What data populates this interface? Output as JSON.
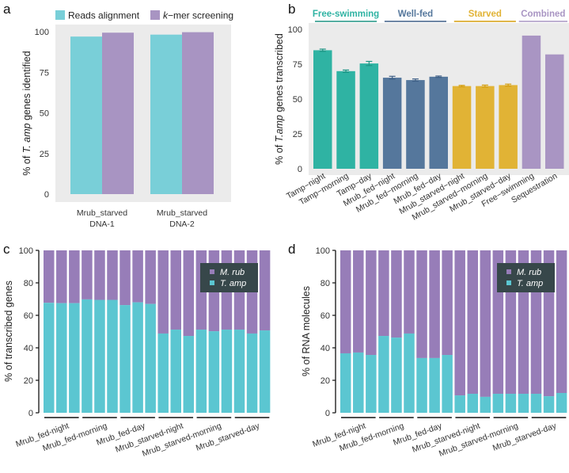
{
  "chart_data": [
    {
      "panel": "a",
      "type": "bar",
      "title": "",
      "xlabel": "",
      "ylabel_parts": [
        "% of ",
        "T. amp",
        " genes identified"
      ],
      "ylabel": "% of T. amp genes identified",
      "categories": [
        [
          "Mrub_starved",
          "DNA-1"
        ],
        [
          "Mrub_starved",
          "DNA-2"
        ]
      ],
      "series": [
        {
          "name": "Reads alignment",
          "color": "#79CFD8",
          "values": [
            97.0,
            98.2
          ]
        },
        {
          "name": "k−mer screening",
          "name_parts": [
            "k",
            "−mer screening"
          ],
          "color": "#A894C2",
          "values": [
            99.4,
            99.7
          ]
        }
      ],
      "ylim": [
        0,
        100
      ],
      "yticks": [
        0,
        25,
        50,
        75,
        100
      ],
      "grid": false,
      "background": "#EBEBEB",
      "legend": "top"
    },
    {
      "panel": "b",
      "type": "bar",
      "title": "",
      "ylabel_parts": [
        "% of ",
        "T.amp",
        " genes transcribed"
      ],
      "ylabel": "% of T.amp genes transcribed",
      "categories": [
        "Tamp−night",
        "Tamp−morning",
        "Tamp−day",
        "Mrub_fed−night",
        "Mrub_fed−morning",
        "Mrub_fed−day",
        "Mrub_starved−night",
        "Mrub_starved−morning",
        "Mrub_starved−day",
        "Free−swimming",
        "Sequestration"
      ],
      "values": [
        85.0,
        70.0,
        75.5,
        65.3,
        63.6,
        66.0,
        59.3,
        59.3,
        60.0,
        95.5,
        82.0
      ],
      "errors": [
        0.8,
        0.8,
        1.5,
        1.0,
        0.8,
        0.5,
        0.5,
        0.7,
        0.7,
        null,
        null
      ],
      "groups": [
        {
          "name": "Free-swimming",
          "color": "#2FB3A3",
          "error_color": "#1E9484",
          "indices": [
            0,
            1,
            2
          ]
        },
        {
          "name": "Well-fed",
          "color": "#55779C",
          "error_color": "#3E5F86",
          "indices": [
            3,
            4,
            5
          ]
        },
        {
          "name": "Starved",
          "color": "#E1B335",
          "error_color": "#D59E0E",
          "indices": [
            6,
            7,
            8
          ]
        },
        {
          "name": "Combined",
          "color": "#A995C3",
          "error_color": "#A995C3",
          "indices": [
            9,
            10
          ]
        }
      ],
      "ylim": [
        0,
        100
      ],
      "yticks": [
        0,
        25,
        50,
        75,
        100
      ],
      "background": "#EBEBEB"
    },
    {
      "panel": "c",
      "type": "bar",
      "stacked": true,
      "ylabel": "% of transcribed genes",
      "group_labels": [
        "Mrub_fed-night",
        "Mrub_fed-morning",
        "Mrub_fed-day",
        "Mrub_starved-night",
        "Mrub_starved-morning",
        "Mrub_starved-day"
      ],
      "bars_per_group": 3,
      "series": [
        {
          "name": "T. amp",
          "color": "#5BC6D1",
          "values": [
            67.7,
            67.5,
            67.5,
            69.8,
            69.5,
            69.5,
            66.3,
            68.0,
            67.0,
            48.8,
            51.2,
            47.3,
            51.2,
            50.2,
            51.2,
            51.2,
            48.8,
            50.7
          ]
        },
        {
          "name": "M. rub",
          "color": "#977DB8",
          "values": [
            32.3,
            32.5,
            32.5,
            30.2,
            30.5,
            30.5,
            33.7,
            32.0,
            33.0,
            51.2,
            48.8,
            52.7,
            48.8,
            49.8,
            48.8,
            48.8,
            51.2,
            49.3
          ]
        }
      ],
      "legend_order": [
        "M. rub",
        "T. amp"
      ],
      "legend": "top-right",
      "legend_bg": "#37474A",
      "ylim": [
        0,
        100
      ],
      "yticks": [
        0,
        20,
        40,
        60,
        80,
        100
      ]
    },
    {
      "panel": "d",
      "type": "bar",
      "stacked": true,
      "ylabel": "% of RNA molecules",
      "group_labels": [
        "Mrub_fed-night",
        "Mrub_fed-morning",
        "Mrub_fed-day",
        "Mrub_starved-night",
        "Mrub_starved-morning",
        "Mrub_starved-day"
      ],
      "bars_per_group": 3,
      "series": [
        {
          "name": "T. amp",
          "color": "#5BC6D1",
          "values": [
            36.6,
            37.1,
            35.6,
            47.3,
            46.3,
            48.8,
            33.7,
            33.7,
            35.6,
            10.7,
            11.7,
            9.8,
            11.7,
            11.7,
            11.7,
            11.7,
            10.2,
            12.2
          ]
        },
        {
          "name": "M. rub",
          "color": "#977DB8",
          "values": [
            63.4,
            62.9,
            64.4,
            52.7,
            53.7,
            51.2,
            66.3,
            66.3,
            64.4,
            89.3,
            88.3,
            90.2,
            88.3,
            88.3,
            88.3,
            88.3,
            89.8,
            87.8
          ]
        }
      ],
      "legend_order": [
        "M. rub",
        "T. amp"
      ],
      "legend": "top-right",
      "legend_bg": "#37474A",
      "ylim": [
        0,
        100
      ],
      "yticks": [
        0,
        20,
        40,
        60,
        80,
        100
      ]
    }
  ],
  "panel_letters": [
    "a",
    "b",
    "c",
    "d"
  ]
}
